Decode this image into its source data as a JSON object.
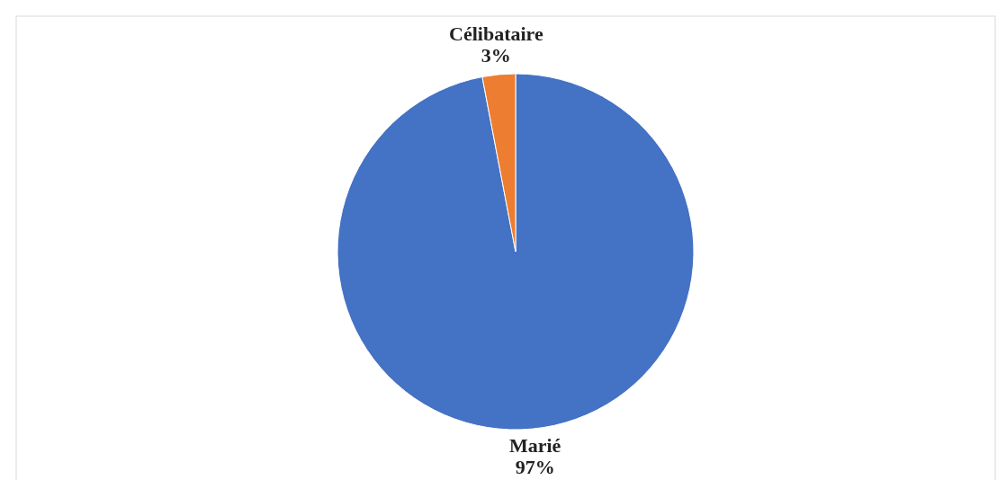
{
  "chart_data": {
    "type": "pie",
    "categories": [
      "Marié",
      "Célibataire"
    ],
    "values": [
      97,
      3
    ],
    "colors": [
      "#4472c4",
      "#ed7d31"
    ],
    "value_labels": [
      "97%",
      "3%"
    ]
  }
}
